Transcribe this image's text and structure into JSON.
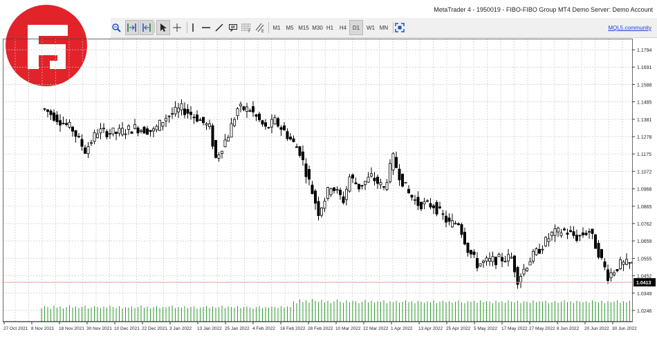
{
  "window": {
    "title": "MetaTrader 4 - 1950019 - FIBO-FIBO Group MT4 Demo Server: Demo Account"
  },
  "toolbar": {
    "icons": [
      "zoom-in-icon",
      "auto-scroll-icon",
      "chart-shift-icon",
      "cursor-icon",
      "crosshair-icon",
      "horizontal-line-icon",
      "trendline-icon",
      "text-label-icon",
      "fibonacci-icon",
      "trend-channel-icon"
    ],
    "timeframes": [
      "M1",
      "M5",
      "M15",
      "M30",
      "H1",
      "H4",
      "D1",
      "W1",
      "MN"
    ],
    "active_timeframe": "D1",
    "community_link": "MQL5.community"
  },
  "logo": {
    "name": "fibo-group-logo",
    "color": "#e2232a"
  },
  "colors": {
    "bull_body": "#ffffff",
    "bear_body": "#000000",
    "candle_outline": "#000000",
    "grid": "#c8c8c8",
    "volume": "#2e9a2e",
    "price_line": "#e8a0a0",
    "price_label_bg": "#000000",
    "price_label_text": "#ffffff"
  },
  "chart_data": {
    "type": "candlestick",
    "symbol_timeframe": "D1",
    "current_price": "1.0413",
    "y_ticks": [
      "1.1794",
      "1.1691",
      "1.1588",
      "1.1485",
      "1.1381",
      "1.1278",
      "1.1175",
      "1.1072",
      "1.0968",
      "1.0865",
      "1.0762",
      "1.0659",
      "1.0555",
      "1.0452",
      "1.0349",
      "1.0246"
    ],
    "ylim": [
      1.018,
      1.186
    ],
    "x_labels": [
      "27 Oct 2021",
      "8 Nov 2021",
      "18 Nov 2021",
      "30 Nov 2021",
      "10 Dec 2021",
      "22 Dec 2021",
      "3 Jan 2022",
      "13 Jan 2022",
      "25 Jan 2022",
      "4 Feb 2022",
      "16 Feb 2022",
      "28 Feb 2022",
      "10 Mar 2022",
      "22 Mar 2022",
      "1 Apr 2022",
      "13 Apr 2022",
      "25 Apr 2022",
      "5 May 2022",
      "17 May 2022",
      "27 May 2022",
      "8 Jun 2022",
      "20 Jun 2022",
      "30 Jun 2022"
    ],
    "close_path": [
      [
        1,
        1.144
      ],
      [
        10,
        1.132
      ],
      [
        14,
        1.1195
      ],
      [
        18,
        1.131
      ],
      [
        24,
        1.13
      ],
      [
        30,
        1.133
      ],
      [
        36,
        1.131
      ],
      [
        40,
        1.1395
      ],
      [
        45,
        1.1445
      ],
      [
        50,
        1.139
      ],
      [
        54,
        1.133
      ],
      [
        56,
        1.115
      ],
      [
        60,
        1.129
      ],
      [
        63,
        1.1445
      ],
      [
        67,
        1.144
      ],
      [
        72,
        1.1325
      ],
      [
        75,
        1.137
      ],
      [
        78,
        1.131
      ],
      [
        83,
        1.119
      ],
      [
        86,
        1.101
      ],
      [
        89,
        1.083
      ],
      [
        93,
        1.099
      ],
      [
        97,
        1.09
      ],
      [
        99,
        1.104
      ],
      [
        102,
        1.098
      ],
      [
        106,
        1.104
      ],
      [
        110,
        1.097
      ],
      [
        113,
        1.115
      ],
      [
        115,
        1.105
      ],
      [
        118,
        1.094
      ],
      [
        121,
        1.088
      ],
      [
        126,
        1.087
      ],
      [
        131,
        1.076
      ],
      [
        134,
        1.077
      ],
      [
        137,
        1.061
      ],
      [
        140,
        1.052
      ],
      [
        144,
        1.054
      ],
      [
        147,
        1.055
      ],
      [
        151,
        1.056
      ],
      [
        153,
        1.043
      ],
      [
        157,
        1.055
      ],
      [
        160,
        1.061
      ],
      [
        164,
        1.07
      ],
      [
        168,
        1.072
      ],
      [
        172,
        1.068
      ],
      [
        176,
        1.072
      ],
      [
        179,
        1.059
      ],
      [
        182,
        1.045
      ],
      [
        186,
        1.052
      ],
      [
        190,
        1.052
      ],
      [
        193,
        1.057
      ],
      [
        196,
        1.046
      ],
      [
        198,
        1.0413
      ]
    ],
    "volumes": [
      0.28,
      0.32,
      0.3,
      0.26,
      0.33,
      0.29,
      0.31,
      0.27,
      0.3,
      0.34,
      0.29,
      0.31,
      0.28,
      0.3,
      0.33,
      0.27,
      0.29,
      0.32,
      0.3,
      0.28,
      0.31,
      0.29,
      0.33,
      0.3,
      0.28,
      0.32,
      0.27,
      0.3,
      0.29,
      0.31,
      0.28,
      0.3,
      0.33,
      0.29,
      0.31,
      0.27,
      0.3,
      0.32,
      0.28,
      0.3,
      0.29,
      0.31,
      0.33,
      0.28,
      0.3,
      0.29,
      0.32,
      0.28,
      0.3,
      0.31,
      0.27,
      0.29,
      0.3,
      0.32,
      0.28,
      0.31,
      0.29,
      0.3,
      0.33,
      0.28,
      0.31,
      0.3,
      0.29,
      0.32,
      0.28,
      0.3,
      0.31,
      0.29,
      0.27,
      0.3,
      0.32,
      0.28,
      0.3,
      0.29,
      0.31,
      0.3,
      0.28,
      0.32,
      0.29,
      0.31,
      0.3,
      0.42,
      0.38,
      0.46,
      0.4,
      0.44,
      0.39,
      0.47,
      0.43,
      0.41,
      0.45,
      0.4,
      0.43,
      0.38,
      0.42,
      0.46,
      0.41,
      0.39,
      0.44,
      0.4,
      0.43,
      0.42,
      0.38,
      0.41,
      0.45,
      0.4,
      0.43,
      0.39,
      0.42,
      0.41,
      0.44,
      0.38,
      0.42,
      0.4,
      0.43,
      0.39,
      0.41,
      0.44,
      0.4,
      0.42,
      0.38,
      0.43,
      0.41,
      0.39,
      0.42,
      0.4,
      0.44,
      0.38,
      0.41,
      0.43,
      0.4,
      0.42,
      0.39,
      0.41,
      0.44,
      0.4,
      0.38,
      0.42,
      0.41,
      0.43,
      0.39,
      0.44,
      0.4,
      0.42,
      0.41,
      0.38,
      0.43,
      0.4,
      0.42,
      0.39,
      0.44,
      0.41,
      0.4,
      0.43,
      0.38,
      0.42,
      0.41,
      0.39,
      0.44,
      0.4,
      0.42,
      0.41,
      0.43,
      0.38,
      0.4,
      0.42,
      0.39,
      0.41,
      0.44,
      0.4,
      0.42,
      0.38,
      0.43,
      0.41,
      0.4,
      0.42,
      0.39,
      0.44,
      0.41,
      0.4,
      0.43,
      0.38,
      0.42,
      0.4,
      0.41,
      0.44,
      0.39,
      0.42,
      0.4,
      0.43,
      0.41,
      0.38,
      0.42,
      0.4,
      0.44,
      0.41,
      0.39,
      0.43
    ]
  }
}
